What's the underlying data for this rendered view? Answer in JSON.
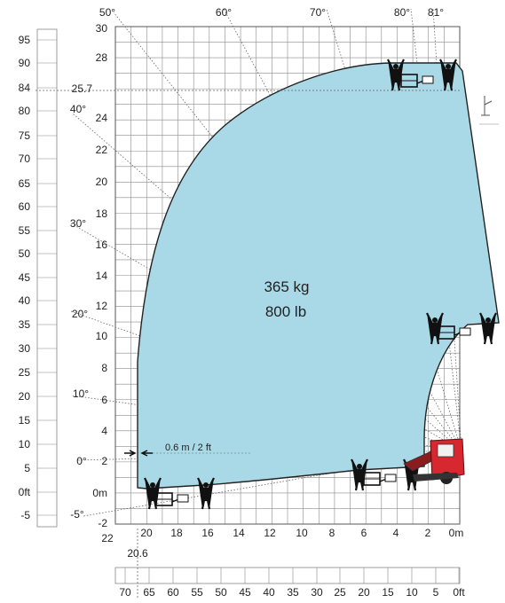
{
  "load": {
    "kg": "365 kg",
    "lb": "800 lb"
  },
  "width_note": "0.6 m / 2 ft",
  "reach_marker": "20.6",
  "left_scale_labels": [
    "95",
    "90",
    "84",
    "80",
    "75",
    "70",
    "65",
    "60",
    "55",
    "50",
    "45",
    "40",
    "35",
    "30",
    "25",
    "20",
    "15",
    "10",
    "5",
    "0ft",
    "-5"
  ],
  "height_axis_labels": [
    "30",
    "28",
    "25.7",
    "24",
    "22",
    "20",
    "18",
    "16",
    "14",
    "12",
    "10",
    "8",
    "6",
    "4",
    "2",
    "0m",
    "-2"
  ],
  "reach_axis_labels": [
    "22",
    "20",
    "18",
    "16",
    "14",
    "12",
    "10",
    "8",
    "6",
    "4",
    "2",
    "0m"
  ],
  "bottom_scale_labels": [
    "70",
    "65",
    "60",
    "55",
    "50",
    "45",
    "40",
    "35",
    "30",
    "25",
    "20",
    "15",
    "10",
    "5",
    "0ft"
  ],
  "angle_labels": [
    "81°",
    "80°",
    "70°",
    "60°",
    "50°",
    "40°",
    "30°",
    "20°",
    "10°",
    "0°",
    "-5°"
  ],
  "colors": {
    "envelope_fill": "#a9d9e6",
    "grid": "#7a7a7a",
    "machine": "#d7282f"
  },
  "icons": [
    "operator-figure-icon",
    "work-platform-icon",
    "telehandler-machine-icon"
  ]
}
